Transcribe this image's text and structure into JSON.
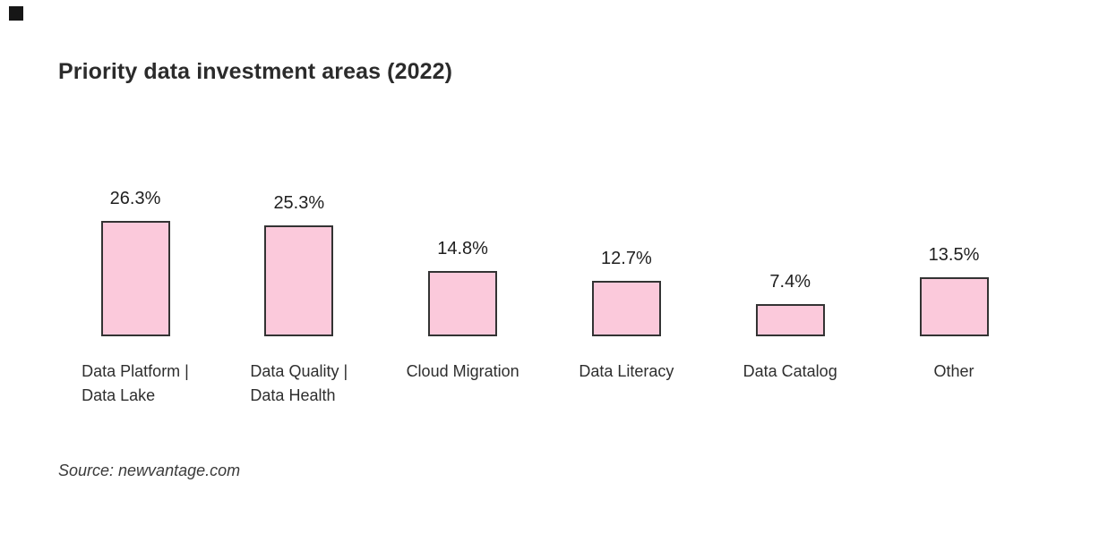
{
  "meta": {
    "background": "#ffffff",
    "corner_mark_color": "#161616",
    "bar_fill": "#fbc9db",
    "bar_border": "#333333",
    "text_dark": "#2b2b2b"
  },
  "chart_data": {
    "type": "bar",
    "title": "Priority data investment areas (2022)",
    "categories": [
      "Data Platform | Data Lake",
      "Data Quality | Data Health",
      "Cloud Migration",
      "Data Literacy",
      "Data Catalog",
      "Other"
    ],
    "category_lines": [
      [
        "Data Platform |",
        "Data Lake"
      ],
      [
        "Data Quality |",
        "Data Health"
      ],
      [
        "Cloud Migration"
      ],
      [
        "Data Literacy"
      ],
      [
        "Data Catalog"
      ],
      [
        "Other"
      ]
    ],
    "values": [
      26.3,
      25.3,
      14.8,
      12.7,
      7.4,
      13.5
    ],
    "value_labels": [
      "26.3%",
      "25.3%",
      "14.8%",
      "12.7%",
      "7.4%",
      "13.5%"
    ],
    "unit": "%",
    "ylim": [
      0,
      30
    ],
    "xlabel": "",
    "ylabel": "",
    "grid": false,
    "axes_visible": false,
    "legend": false,
    "data_labels_position": "above",
    "bar_fill": "#fbc9db",
    "bar_border": "#333333",
    "source": "Source: newvantage.com"
  }
}
